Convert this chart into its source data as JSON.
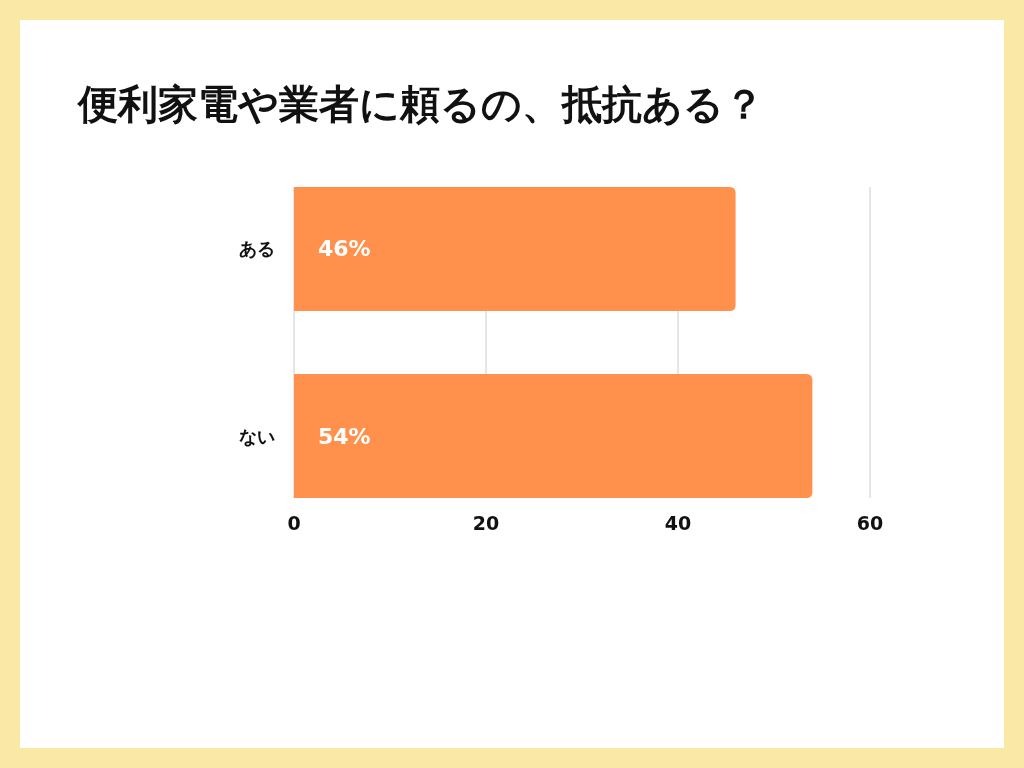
{
  "chart_data": {
    "type": "bar",
    "orientation": "horizontal",
    "title": "便利家電や業者に頼るの、抵抗ある？",
    "categories": [
      "ある",
      "ない"
    ],
    "values": [
      46,
      54
    ],
    "value_labels": [
      "46%",
      "54%"
    ],
    "color": "#ff914d",
    "xlim": [
      0,
      60
    ],
    "xticks": [
      0,
      20,
      40,
      60
    ],
    "grid": "x"
  }
}
